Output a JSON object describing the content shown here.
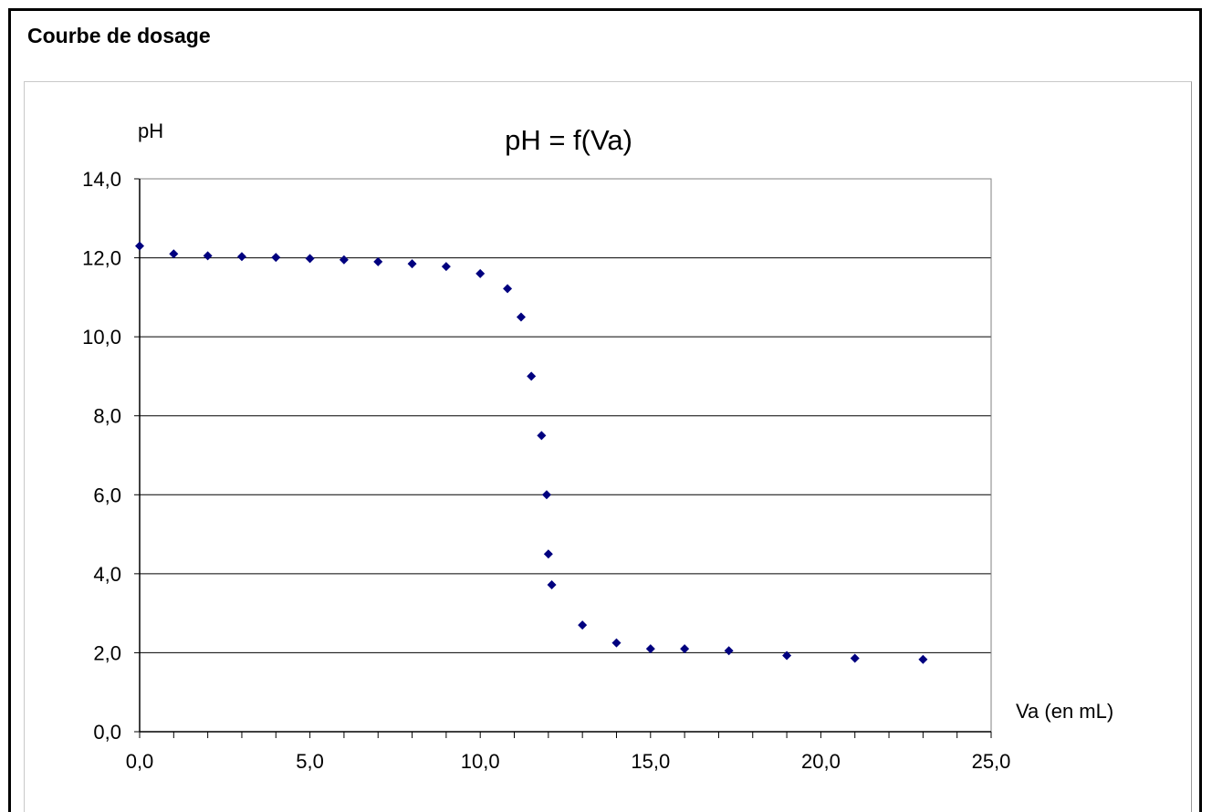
{
  "heading": "Courbe de dosage",
  "colors": {
    "marker": "#00007f",
    "grid": "#000000",
    "text": "#000000"
  },
  "chart_data": {
    "type": "scatter",
    "title": "pH = f(Va)",
    "xlabel": "Va (en mL)",
    "ylabel": "pH",
    "xlim": [
      0,
      25
    ],
    "ylim": [
      0,
      14
    ],
    "xticks": [
      "0,0",
      "5,0",
      "10,0",
      "15,0",
      "20,0",
      "25,0"
    ],
    "yticks": [
      "0,0",
      "2,0",
      "4,0",
      "6,0",
      "8,0",
      "10,0",
      "12,0",
      "14,0"
    ],
    "grid": "horizontal",
    "legend": "none",
    "series": [
      {
        "marker": "diamond",
        "x": [
          0,
          1,
          2,
          3,
          4,
          5,
          6,
          7,
          8,
          9,
          10,
          10.8,
          11.2,
          11.5,
          11.8,
          11.95,
          12.0,
          12.1,
          13,
          14,
          15,
          16,
          17.3,
          19,
          21,
          23
        ],
        "y": [
          12.3,
          12.1,
          12.05,
          12.03,
          12.01,
          11.98,
          11.95,
          11.9,
          11.85,
          11.78,
          11.6,
          11.22,
          10.5,
          9.0,
          7.5,
          6.0,
          4.5,
          3.72,
          2.7,
          2.25,
          2.1,
          2.1,
          2.05,
          1.93,
          1.86,
          1.83
        ]
      }
    ]
  }
}
